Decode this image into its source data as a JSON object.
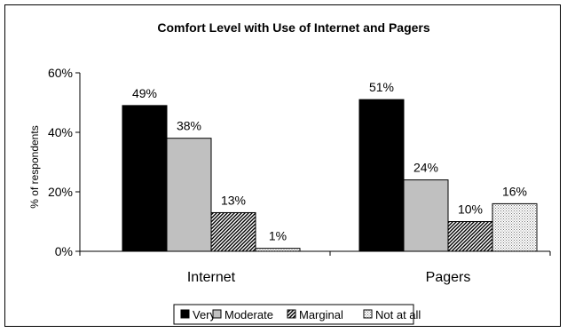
{
  "chart_data": {
    "type": "bar",
    "title": "Comfort Level with Use of Internet and Pagers",
    "xlabel": "",
    "ylabel": "% of respondents",
    "ylim": [
      0,
      60
    ],
    "yticks": [
      "0%",
      "20%",
      "40%",
      "60%"
    ],
    "categories": [
      "Internet",
      "Pagers"
    ],
    "grid": false,
    "legend_position": "bottom",
    "series": [
      {
        "name": "Very",
        "values": [
          49,
          51
        ],
        "labels": [
          "49%",
          "51%"
        ],
        "color": "#000000",
        "pattern": "solid"
      },
      {
        "name": "Moderate",
        "values": [
          38,
          24
        ],
        "labels": [
          "38%",
          "24%"
        ],
        "color": "#c0c0c0",
        "pattern": "solid"
      },
      {
        "name": "Marginal",
        "values": [
          13,
          10
        ],
        "labels": [
          "13%",
          "10%"
        ],
        "color": "#555555",
        "pattern": "diagonal-hatch"
      },
      {
        "name": "Not at all",
        "values": [
          1,
          16
        ],
        "labels": [
          "1%",
          "16%"
        ],
        "color": "#e6e6e6",
        "pattern": "dots"
      }
    ]
  }
}
